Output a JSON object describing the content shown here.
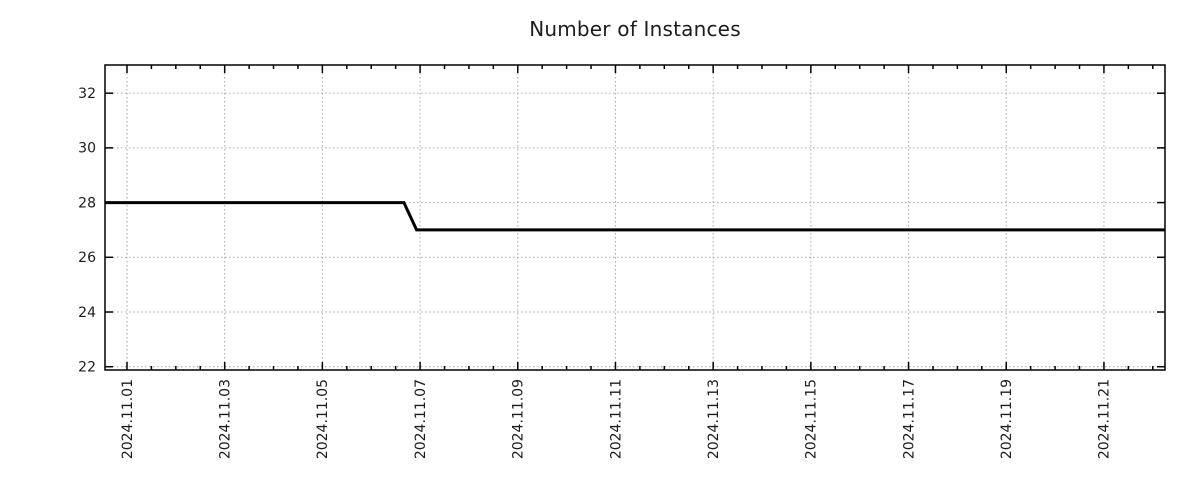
{
  "page": {
    "background_color": "#ffffff"
  },
  "chart_data": {
    "type": "line",
    "title": "Number of Instances",
    "xlabel": "",
    "ylabel": "",
    "legend": "none",
    "grid": {
      "show": true,
      "color": "#a6a6a6",
      "style": "dotted"
    },
    "x_axis": {
      "unit": "days_since_2024-11-01",
      "lim": [
        -0.45,
        21.25
      ],
      "major_ticks": [
        {
          "day": 0,
          "label": "2024.11.01"
        },
        {
          "day": 2,
          "label": "2024.11.03"
        },
        {
          "day": 4,
          "label": "2024.11.05"
        },
        {
          "day": 6,
          "label": "2024.11.07"
        },
        {
          "day": 8,
          "label": "2024.11.09"
        },
        {
          "day": 10,
          "label": "2024.11.11"
        },
        {
          "day": 12,
          "label": "2024.11.13"
        },
        {
          "day": 14,
          "label": "2024.11.15"
        },
        {
          "day": 16,
          "label": "2024.11.17"
        },
        {
          "day": 18,
          "label": "2024.11.19"
        },
        {
          "day": 20,
          "label": "2024.11.21"
        }
      ],
      "minor_tick_interval": 0.5,
      "label_rotation_deg": -90
    },
    "y_axis": {
      "lim": [
        21.88,
        33.03
      ],
      "ticks": [
        22,
        24,
        26,
        28,
        30,
        32
      ]
    },
    "series": [
      {
        "name": "instances",
        "color": "#000000",
        "line_width": 3,
        "points": [
          {
            "day": -0.45,
            "value": 28
          },
          {
            "day": 5.67,
            "value": 28
          },
          {
            "day": 5.93,
            "value": 27
          },
          {
            "day": 21.25,
            "value": 27
          }
        ]
      }
    ],
    "colors": {
      "axis_border": "#000000",
      "tick_text": "#1c1c1c",
      "title_text": "#1c1c1c"
    }
  }
}
